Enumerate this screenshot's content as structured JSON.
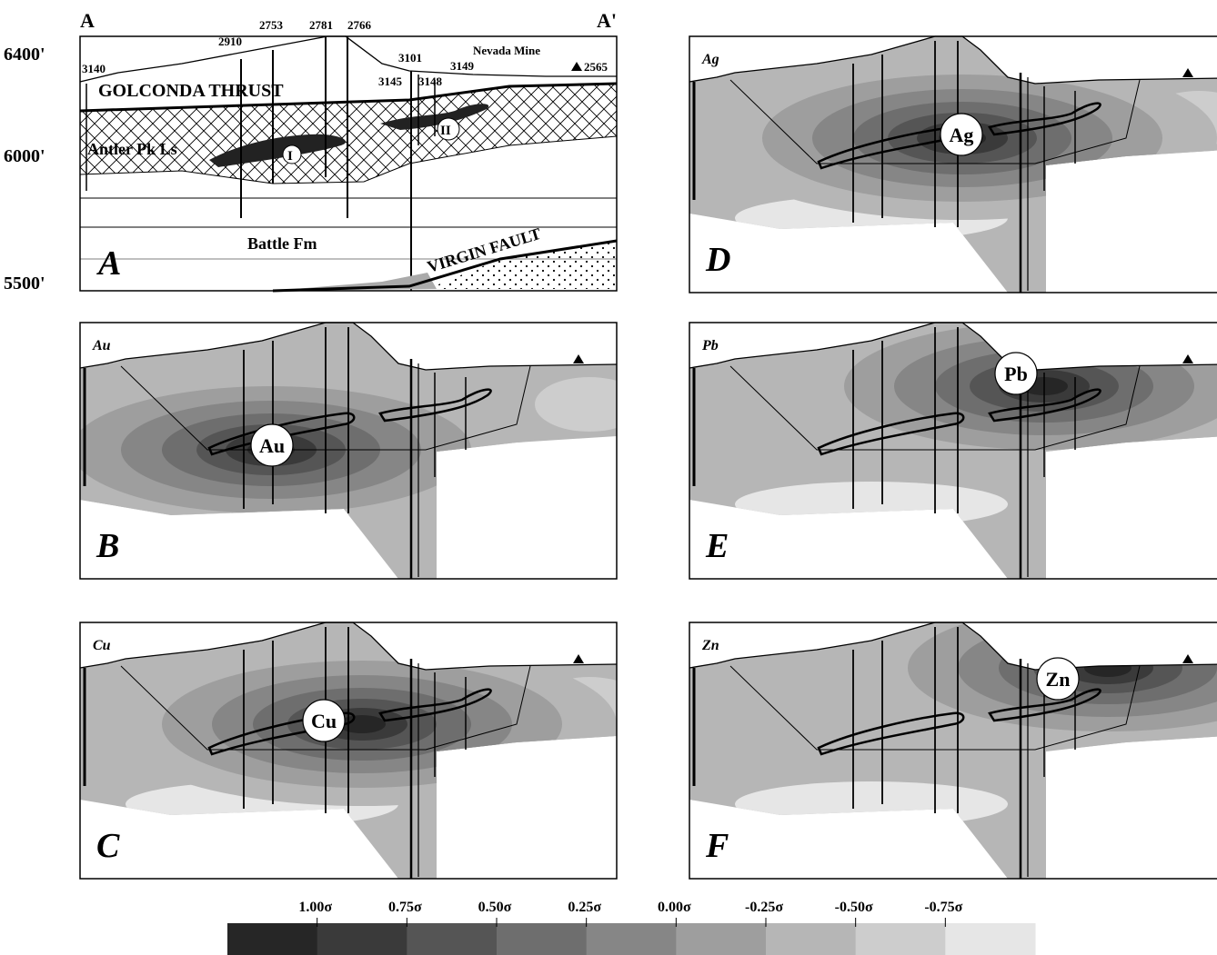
{
  "cross_section": {
    "corner_left": "A",
    "corner_right": "A'",
    "elevations": [
      "6400'",
      "6000'",
      "5500'"
    ],
    "wells": [
      "3140",
      "2910",
      "2753",
      "2781",
      "2766",
      "3101",
      "3145",
      "3148",
      "3149",
      "2565"
    ],
    "site": "Nevada Mine",
    "thrust": "GOLCONDA THRUST",
    "upper_unit": "Antler Pk Ls",
    "orebodies": [
      "I",
      "II"
    ],
    "lower_unit": "Battle Fm",
    "fault": "VIRGIN FAULT",
    "panel": "A"
  },
  "panels": [
    {
      "element": "Au",
      "marker": "Au",
      "letter": "B"
    },
    {
      "element": "Cu",
      "marker": "Cu",
      "letter": "C"
    },
    {
      "element": "Ag",
      "marker": "Ag",
      "letter": "D"
    },
    {
      "element": "Pb",
      "marker": "Pb",
      "letter": "E"
    },
    {
      "element": "Zn",
      "marker": "Zn",
      "letter": "F"
    }
  ],
  "colorbar": {
    "labels": [
      "1.00σ",
      "0.75σ",
      "0.50σ",
      "0.25σ",
      "0.00σ",
      "-0.25σ",
      "-0.50σ",
      "-0.75σ"
    ]
  }
}
